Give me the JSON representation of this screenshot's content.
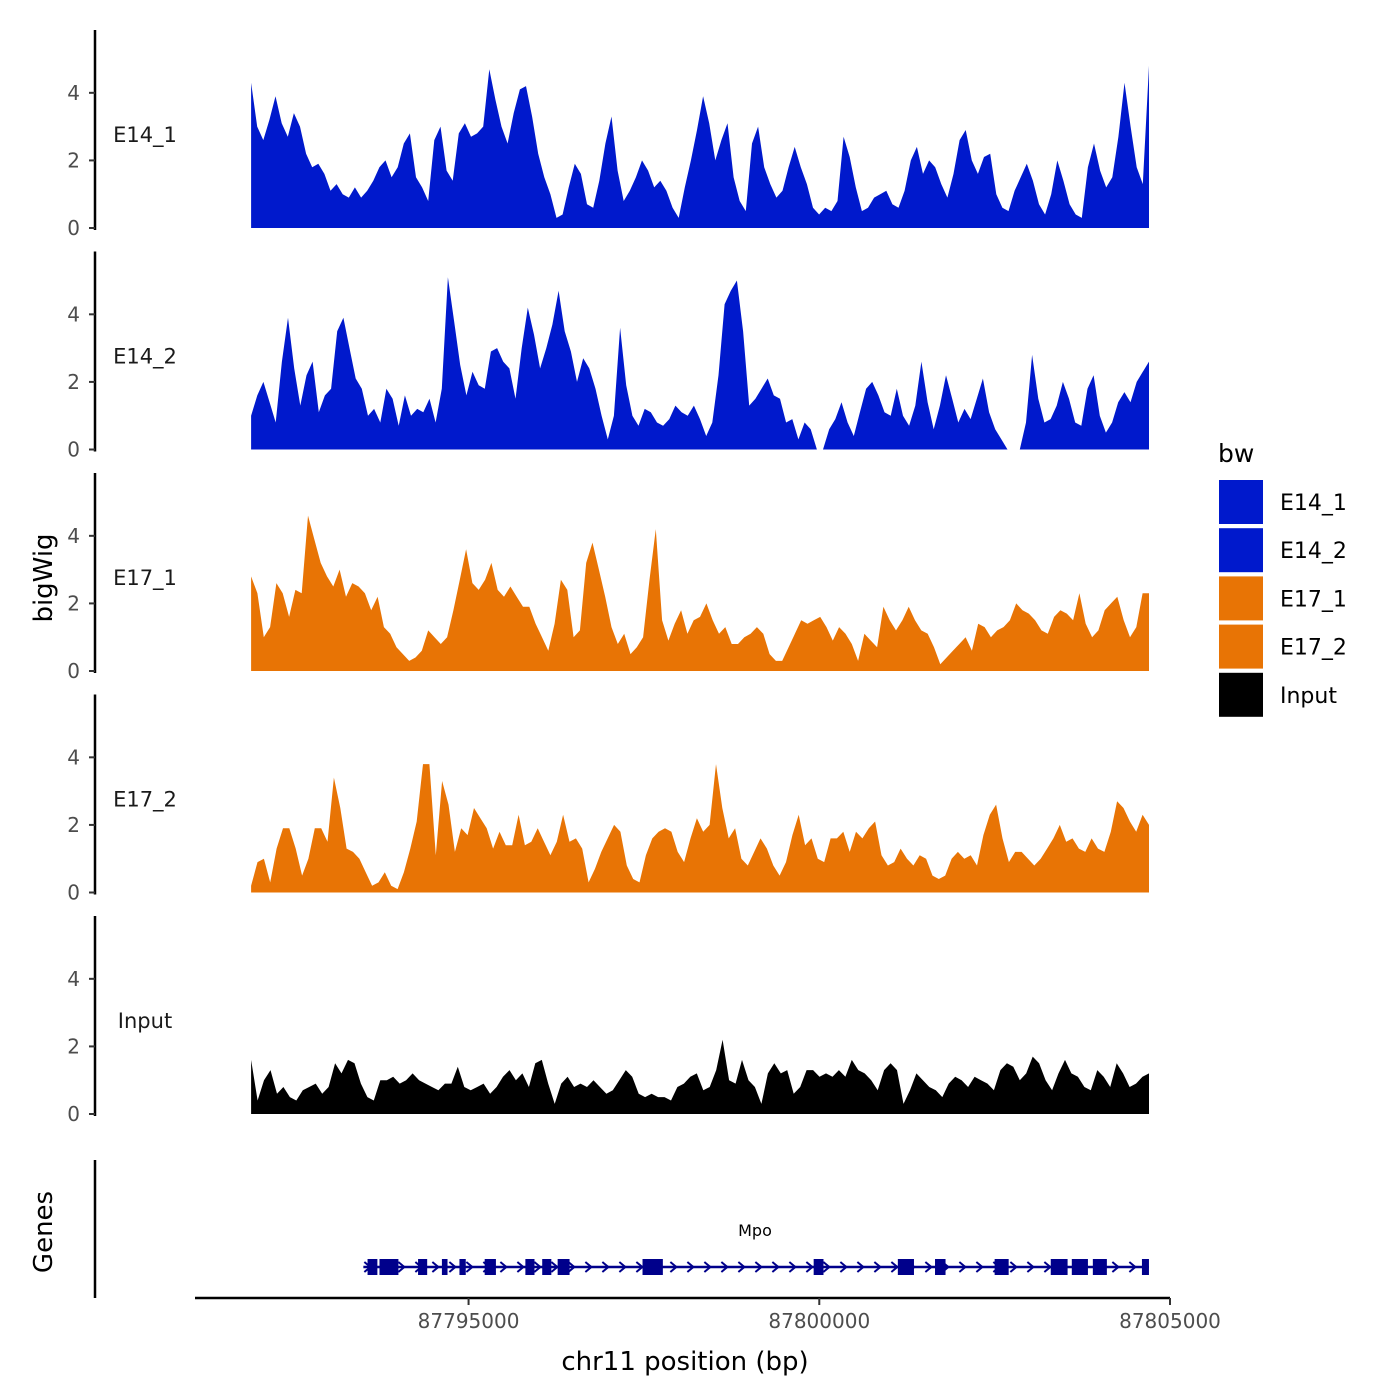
{
  "chart_data": {
    "type": "area",
    "ylabel": "bigWig",
    "xlabel": "chr11 position (bp)",
    "x_ticks": [
      87795000,
      87800000,
      87805000
    ],
    "x_tick_labels": [
      "87795000",
      "87800000",
      "87805000"
    ],
    "xlim": [
      87791100,
      87805000
    ],
    "ylim": [
      0,
      5.8
    ],
    "y_ticks": [
      0,
      2,
      4
    ],
    "y_tick_labels": [
      "0",
      "2",
      "4"
    ],
    "data_range": [
      87791900,
      87804700
    ],
    "legend": {
      "title": "bw",
      "position": "right",
      "entries": [
        {
          "label": "E14_1",
          "color": "#0019CC"
        },
        {
          "label": "E14_2",
          "color": "#0019CC"
        },
        {
          "label": "E17_1",
          "color": "#E87405"
        },
        {
          "label": "E17_2",
          "color": "#E87405"
        },
        {
          "label": "Input",
          "color": "#000000"
        }
      ]
    },
    "tracks": [
      {
        "name": "E14_1",
        "color": "#0019CC",
        "values": [
          4.3,
          3.0,
          2.6,
          3.2,
          3.9,
          3.1,
          2.7,
          3.4,
          3.0,
          2.2,
          1.8,
          1.9,
          1.6,
          1.1,
          1.3,
          1.0,
          0.9,
          1.2,
          0.9,
          1.1,
          1.4,
          1.8,
          2.0,
          1.5,
          1.8,
          2.5,
          2.8,
          1.5,
          1.2,
          0.8,
          2.6,
          3.0,
          1.7,
          1.4,
          2.8,
          3.1,
          2.7,
          2.8,
          3.0,
          4.7,
          3.8,
          3.0,
          2.5,
          3.4,
          4.1,
          4.2,
          3.3,
          2.2,
          1.5,
          1.0,
          0.3,
          0.4,
          1.2,
          1.9,
          1.6,
          0.7,
          0.6,
          1.4,
          2.5,
          3.3,
          1.7,
          0.8,
          1.1,
          1.5,
          2.0,
          1.7,
          1.2,
          1.4,
          1.1,
          0.6,
          0.3,
          1.2,
          2.0,
          2.9,
          3.9,
          3.1,
          2.0,
          2.6,
          3.1,
          1.5,
          0.8,
          0.5,
          2.5,
          3.0,
          1.8,
          1.3,
          0.9,
          1.1,
          1.8,
          2.4,
          1.8,
          1.3,
          0.6,
          0.4,
          0.6,
          0.5,
          0.8,
          2.7,
          2.1,
          1.2,
          0.5,
          0.6,
          0.9,
          1.0,
          1.1,
          0.7,
          0.6,
          1.1,
          2.0,
          2.4,
          1.6,
          2.0,
          1.8,
          1.3,
          0.9,
          1.6,
          2.6,
          2.9,
          2.0,
          1.6,
          2.1,
          2.2,
          1.0,
          0.6,
          0.5,
          1.1,
          1.5,
          1.9,
          1.4,
          0.7,
          0.4,
          1.0,
          2.0,
          1.4,
          0.7,
          0.4,
          0.3,
          1.8,
          2.5,
          1.7,
          1.2,
          1.5,
          2.7,
          4.3,
          3.0,
          1.8,
          1.3,
          4.8
        ]
      },
      {
        "name": "E14_2",
        "color": "#0019CC",
        "values": [
          1.0,
          1.6,
          2.0,
          1.4,
          0.8,
          2.6,
          3.9,
          2.4,
          1.3,
          2.2,
          2.6,
          1.1,
          1.6,
          1.8,
          3.5,
          3.9,
          3.0,
          2.1,
          1.8,
          1.0,
          1.2,
          0.8,
          1.8,
          1.5,
          0.7,
          1.6,
          1.0,
          1.2,
          1.1,
          1.5,
          0.8,
          1.8,
          5.1,
          3.8,
          2.5,
          1.6,
          2.3,
          1.9,
          1.8,
          2.9,
          3.0,
          2.6,
          2.4,
          1.5,
          3.0,
          4.2,
          3.4,
          2.4,
          3.0,
          3.7,
          4.7,
          3.5,
          2.9,
          2.0,
          2.7,
          2.4,
          1.8,
          1.0,
          0.3,
          1.0,
          3.6,
          1.9,
          1.0,
          0.7,
          1.2,
          1.1,
          0.8,
          0.7,
          0.9,
          1.3,
          1.1,
          1.0,
          1.3,
          0.9,
          0.4,
          0.8,
          2.2,
          4.3,
          4.7,
          5.0,
          3.5,
          1.3,
          1.5,
          1.8,
          2.1,
          1.6,
          1.5,
          0.8,
          0.9,
          0.3,
          0.8,
          0.6,
          0.0,
          0.0,
          0.6,
          0.9,
          1.4,
          0.8,
          0.4,
          1.1,
          1.8,
          2.0,
          1.6,
          1.1,
          1.0,
          1.8,
          1.0,
          0.7,
          1.3,
          2.6,
          1.4,
          0.6,
          1.3,
          2.2,
          1.5,
          0.8,
          1.2,
          0.9,
          1.5,
          2.1,
          1.1,
          0.6,
          0.3,
          0.0,
          0.0,
          0.0,
          0.8,
          2.8,
          1.5,
          0.8,
          0.9,
          1.3,
          2.0,
          1.5,
          0.8,
          0.7,
          1.8,
          2.2,
          1.0,
          0.5,
          0.8,
          1.4,
          1.7,
          1.4,
          2.0,
          2.3,
          2.6
        ]
      },
      {
        "name": "E17_1",
        "color": "#E87405",
        "values": [
          2.8,
          2.3,
          1.0,
          1.3,
          2.6,
          2.3,
          1.6,
          2.4,
          2.3,
          4.6,
          3.9,
          3.2,
          2.8,
          2.5,
          3.0,
          2.2,
          2.6,
          2.5,
          2.3,
          1.8,
          2.2,
          1.3,
          1.1,
          0.7,
          0.5,
          0.3,
          0.4,
          0.6,
          1.2,
          1.0,
          0.8,
          1.0,
          1.8,
          2.7,
          3.6,
          2.6,
          2.4,
          2.7,
          3.2,
          2.4,
          2.2,
          2.5,
          2.2,
          1.9,
          1.9,
          1.4,
          1.0,
          0.6,
          1.4,
          2.7,
          2.4,
          1.0,
          1.2,
          3.2,
          3.8,
          3.0,
          2.2,
          1.3,
          0.8,
          1.1,
          0.5,
          0.7,
          1.0,
          2.7,
          4.2,
          1.5,
          0.9,
          1.4,
          1.8,
          1.1,
          1.5,
          1.6,
          2.0,
          1.5,
          1.1,
          1.3,
          0.8,
          0.8,
          1.0,
          1.1,
          1.3,
          1.1,
          0.5,
          0.3,
          0.3,
          0.7,
          1.1,
          1.5,
          1.4,
          1.5,
          1.6,
          1.3,
          0.9,
          1.3,
          1.1,
          0.8,
          0.3,
          1.1,
          0.9,
          0.7,
          1.9,
          1.5,
          1.2,
          1.5,
          1.9,
          1.5,
          1.2,
          1.1,
          0.7,
          0.2,
          0.4,
          0.6,
          0.8,
          1.0,
          0.6,
          1.4,
          1.3,
          1.0,
          1.2,
          1.3,
          1.5,
          2.0,
          1.8,
          1.7,
          1.5,
          1.2,
          1.1,
          1.6,
          1.8,
          1.7,
          1.5,
          2.3,
          1.4,
          1.0,
          1.2,
          1.8,
          2.0,
          2.2,
          1.5,
          1.0,
          1.3,
          2.3,
          2.3
        ]
      },
      {
        "name": "E17_2",
        "color": "#E87405",
        "values": [
          0.2,
          0.9,
          1.0,
          0.3,
          1.3,
          1.9,
          1.9,
          1.3,
          0.5,
          1.0,
          1.9,
          1.9,
          1.5,
          3.4,
          2.5,
          1.3,
          1.2,
          1.0,
          0.6,
          0.2,
          0.3,
          0.6,
          0.2,
          0.1,
          0.6,
          1.3,
          2.1,
          3.8,
          3.8,
          1.1,
          3.3,
          2.6,
          1.2,
          1.9,
          1.7,
          2.5,
          2.2,
          1.9,
          1.3,
          1.8,
          1.4,
          1.4,
          2.3,
          1.4,
          1.5,
          1.9,
          1.5,
          1.1,
          1.5,
          2.3,
          1.5,
          1.6,
          1.3,
          0.3,
          0.7,
          1.2,
          1.6,
          2.0,
          1.8,
          0.8,
          0.4,
          0.3,
          1.1,
          1.6,
          1.8,
          1.9,
          1.8,
          1.2,
          0.9,
          1.6,
          2.2,
          1.8,
          2.0,
          3.8,
          2.5,
          1.6,
          1.9,
          1.0,
          0.8,
          1.2,
          1.6,
          1.3,
          0.8,
          0.5,
          0.9,
          1.7,
          2.3,
          1.4,
          1.6,
          1.0,
          0.9,
          1.6,
          1.6,
          1.8,
          1.2,
          1.8,
          1.6,
          1.9,
          2.1,
          1.1,
          0.8,
          0.9,
          1.3,
          1.0,
          0.8,
          1.1,
          1.0,
          0.5,
          0.4,
          0.5,
          1.0,
          1.2,
          1.0,
          1.1,
          0.8,
          1.7,
          2.3,
          2.6,
          1.6,
          0.9,
          1.2,
          1.2,
          1.0,
          0.8,
          1.0,
          1.3,
          1.6,
          2.0,
          1.5,
          1.6,
          1.3,
          1.2,
          1.6,
          1.3,
          1.2,
          1.8,
          2.7,
          2.5,
          2.1,
          1.8,
          2.3,
          2.0
        ]
      },
      {
        "name": "Input",
        "color": "#000000",
        "values": [
          1.6,
          0.4,
          1.0,
          1.3,
          0.6,
          0.8,
          0.5,
          0.4,
          0.7,
          0.8,
          0.9,
          0.6,
          0.8,
          1.5,
          1.2,
          1.6,
          1.5,
          0.9,
          0.5,
          0.4,
          1.0,
          1.0,
          1.1,
          0.9,
          1.0,
          1.2,
          1.0,
          0.9,
          0.8,
          0.7,
          0.9,
          0.9,
          1.4,
          0.8,
          0.7,
          0.8,
          0.9,
          0.6,
          0.8,
          1.1,
          1.3,
          1.0,
          1.2,
          0.8,
          1.5,
          1.6,
          0.9,
          0.3,
          0.9,
          1.1,
          0.8,
          0.9,
          0.8,
          1.0,
          0.8,
          0.6,
          0.7,
          1.0,
          1.3,
          1.1,
          0.6,
          0.5,
          0.6,
          0.5,
          0.5,
          0.4,
          0.8,
          0.9,
          1.1,
          1.2,
          0.7,
          0.8,
          1.3,
          2.2,
          1.0,
          0.9,
          1.6,
          1.0,
          0.8,
          0.3,
          1.2,
          1.5,
          1.2,
          1.3,
          0.6,
          0.8,
          1.3,
          1.3,
          1.1,
          1.2,
          1.1,
          1.3,
          1.1,
          1.6,
          1.3,
          1.2,
          1.0,
          0.7,
          1.3,
          1.5,
          1.3,
          0.3,
          0.7,
          1.2,
          1.0,
          0.8,
          0.7,
          0.5,
          0.9,
          1.1,
          1.0,
          0.8,
          1.1,
          1.0,
          0.9,
          0.7,
          1.3,
          1.5,
          1.4,
          1.0,
          1.2,
          1.7,
          1.5,
          1.0,
          0.7,
          1.2,
          1.6,
          1.2,
          1.1,
          0.8,
          0.7,
          1.3,
          1.1,
          0.8,
          1.5,
          1.2,
          0.8,
          0.9,
          1.1,
          1.2
        ]
      }
    ],
    "genes_track": {
      "label": "Genes",
      "gene_name": "Mpo",
      "color": "#00008B",
      "start": 87793500,
      "end": 87804700,
      "exons": [
        [
          87793560,
          87793700
        ],
        [
          87793730,
          87794000
        ],
        [
          87794280,
          87794410
        ],
        [
          87794620,
          87794700
        ],
        [
          87794870,
          87794960
        ],
        [
          87795230,
          87795390
        ],
        [
          87795810,
          87795940
        ],
        [
          87796050,
          87796180
        ],
        [
          87796270,
          87796440
        ],
        [
          87797480,
          87797770
        ],
        [
          87799920,
          87800060
        ],
        [
          87801120,
          87801350
        ],
        [
          87801650,
          87801800
        ],
        [
          87802500,
          87802700
        ],
        [
          87803300,
          87803540
        ],
        [
          87803600,
          87803830
        ],
        [
          87803900,
          87804100
        ],
        [
          87804600,
          87804700
        ]
      ]
    }
  }
}
